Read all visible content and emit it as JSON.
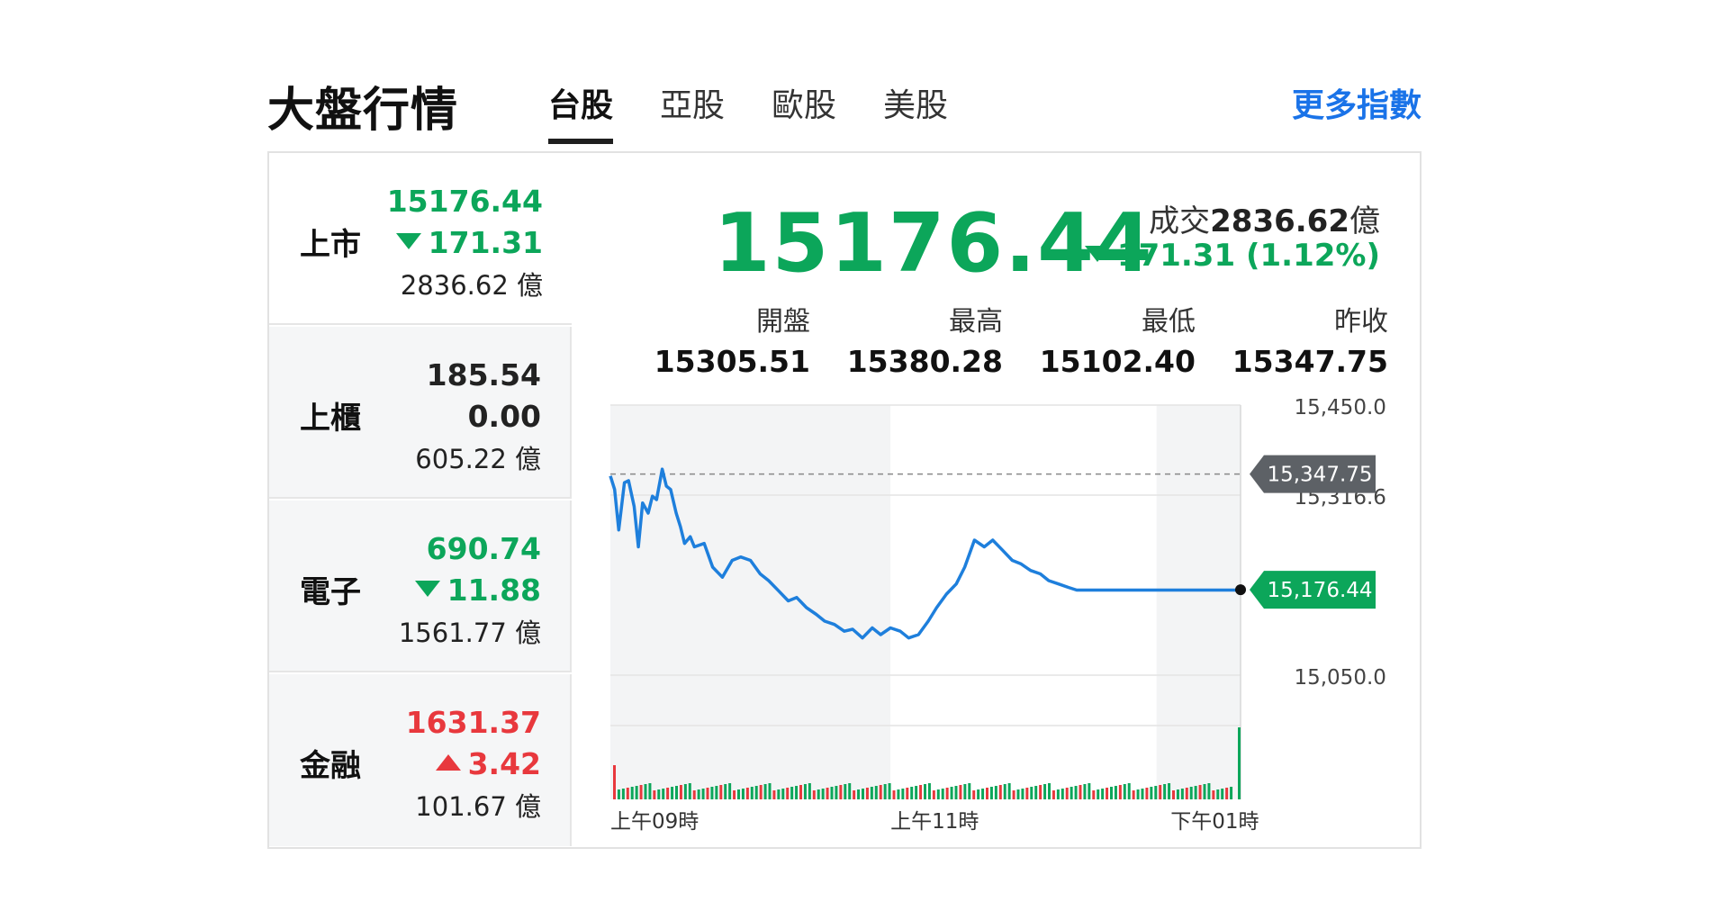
{
  "header": {
    "title": "大盤行情",
    "tabs": [
      {
        "label": "台股",
        "active": true
      },
      {
        "label": "亞股",
        "active": false
      },
      {
        "label": "歐股",
        "active": false
      },
      {
        "label": "美股",
        "active": false
      }
    ],
    "more_label": "更多指數"
  },
  "sidebar": {
    "items": [
      {
        "name": "上市",
        "value": "15176.44",
        "change": "171.31",
        "direction": "down",
        "volume": "2836.62 億"
      },
      {
        "name": "上櫃",
        "value": "185.54",
        "change": "0.00",
        "direction": "flat",
        "volume": "605.22 億"
      },
      {
        "name": "電子",
        "value": "690.74",
        "change": "11.88",
        "direction": "down",
        "volume": "1561.77 億"
      },
      {
        "name": "金融",
        "value": "1631.37",
        "change": "3.42",
        "direction": "up",
        "volume": "101.67 億"
      }
    ]
  },
  "summary": {
    "price": "15176.44",
    "volume_label": "成交",
    "volume_value": "2836.62",
    "volume_unit": "億",
    "change": "171.31 (1.12%)"
  },
  "stats": [
    {
      "label": "開盤",
      "value": "15305.51"
    },
    {
      "label": "最高",
      "value": "15380.28"
    },
    {
      "label": "最低",
      "value": "15102.40"
    },
    {
      "label": "昨收",
      "value": "15347.75"
    }
  ],
  "colors": {
    "up": "#e8383d",
    "down": "#0ca65a",
    "line": "#1e7fdc",
    "link": "#1a73e8",
    "ref_tag": "#5d6166"
  },
  "chart_data": {
    "type": "line",
    "ylim": [
      14983.33,
      15450.0
    ],
    "y_ticks": [
      "15,450.00",
      "15,316.67",
      "15,050.00"
    ],
    "y_tick_values": [
      15450.0,
      15316.67,
      15050.0
    ],
    "x_ticks": [
      "上午09時",
      "上午11時",
      "下午01時"
    ],
    "x_tick_values": [
      9.0,
      11.0,
      13.0
    ],
    "xlim": [
      9.0,
      13.5
    ],
    "reference": {
      "label": "15,347.75",
      "value": 15347.75
    },
    "last": {
      "label": "15,176.44",
      "value": 15176.44
    },
    "series": [
      {
        "x": [
          9.0,
          9.03,
          9.06,
          9.1,
          9.13,
          9.17,
          9.2,
          9.23,
          9.27,
          9.3,
          9.33,
          9.37,
          9.4,
          9.43,
          9.47,
          9.5,
          9.53,
          9.57,
          9.6,
          9.67,
          9.73,
          9.8,
          9.87,
          9.93,
          10.0,
          10.07,
          10.13,
          10.2,
          10.27,
          10.33,
          10.4,
          10.47,
          10.53,
          10.6,
          10.67,
          10.73,
          10.8,
          10.87,
          10.93,
          11.0,
          11.07,
          11.13,
          11.2,
          11.27,
          11.33,
          11.4,
          11.47,
          11.53,
          11.6,
          11.67,
          11.73,
          11.8,
          11.87,
          11.93,
          12.0,
          12.07,
          12.13,
          12.2,
          12.27,
          12.33,
          12.4,
          12.47,
          12.53,
          12.6,
          12.67,
          12.73,
          12.8,
          12.87,
          12.93,
          13.0,
          13.07,
          13.13,
          13.2,
          13.27,
          13.33,
          13.4,
          13.47,
          13.5
        ],
        "values": [
          15345,
          15325,
          15265,
          15335,
          15338,
          15300,
          15240,
          15305,
          15290,
          15315,
          15310,
          15355,
          15330,
          15325,
          15290,
          15270,
          15245,
          15255,
          15240,
          15245,
          15210,
          15195,
          15220,
          15225,
          15220,
          15200,
          15190,
          15175,
          15160,
          15165,
          15150,
          15140,
          15130,
          15125,
          15115,
          15118,
          15105,
          15120,
          15110,
          15120,
          15115,
          15105,
          15110,
          15130,
          15150,
          15170,
          15185,
          15210,
          15250,
          15240,
          15250,
          15235,
          15220,
          15215,
          15205,
          15200,
          15190,
          15185,
          15180,
          15176,
          15176,
          15176,
          15176,
          15176,
          15176,
          15176,
          15176,
          15176,
          15176,
          15176,
          15176,
          15176,
          15176,
          15176,
          15176,
          15176,
          15176,
          15176
        ]
      }
    ]
  }
}
